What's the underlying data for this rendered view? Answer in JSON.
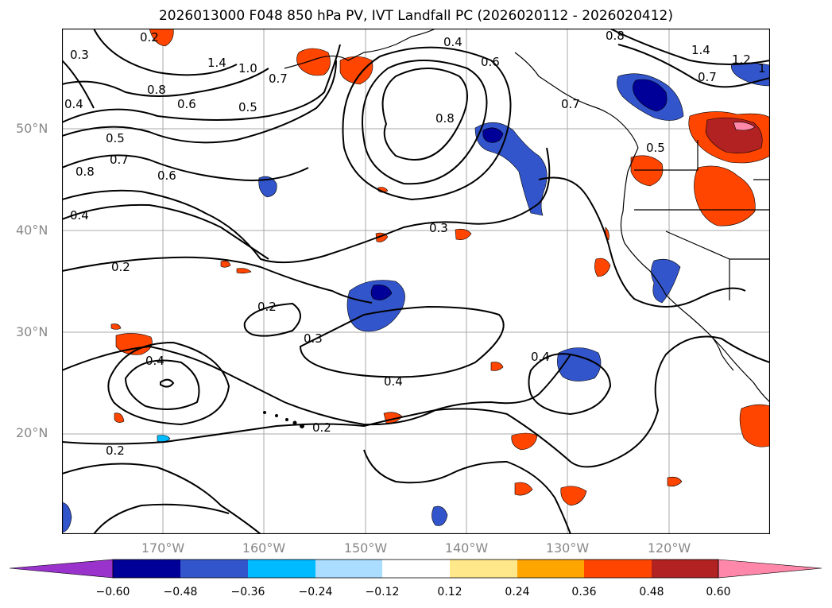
{
  "title": "2026013000 F048 850 hPa PV, IVT Landfall PC (2026020112 - 2026020412)",
  "map": {
    "lat_labels": [
      "50°N",
      "40°N",
      "30°N",
      "20°N"
    ],
    "lon_labels": [
      "170°W",
      "160°W",
      "150°W",
      "140°W",
      "130°W",
      "120°W"
    ]
  },
  "contour_labels": [
    {
      "id": "c1",
      "text": "1.4"
    },
    {
      "id": "c2",
      "text": "1.0"
    },
    {
      "id": "c3",
      "text": "0.7"
    },
    {
      "id": "c4",
      "text": "0.8"
    },
    {
      "id": "c5",
      "text": "0.6"
    },
    {
      "id": "c6",
      "text": "0.5"
    },
    {
      "id": "c7",
      "text": "0.4"
    },
    {
      "id": "c8",
      "text": "0.6"
    },
    {
      "id": "c9",
      "text": "0.8"
    },
    {
      "id": "c10",
      "text": "0.7"
    },
    {
      "id": "c11",
      "text": "0.5"
    },
    {
      "id": "c12",
      "text": "0.5"
    },
    {
      "id": "c13",
      "text": "0.7"
    },
    {
      "id": "c14",
      "text": "0.8"
    },
    {
      "id": "c15",
      "text": "0.6"
    },
    {
      "id": "c16",
      "text": "0.4"
    },
    {
      "id": "c17",
      "text": "0.2"
    },
    {
      "id": "c18",
      "text": "0.3"
    },
    {
      "id": "c19",
      "text": "0.2"
    },
    {
      "id": "c20",
      "text": "0.3"
    },
    {
      "id": "c21",
      "text": "0.4"
    },
    {
      "id": "c22",
      "text": "0.4"
    },
    {
      "id": "c23",
      "text": "0.4"
    },
    {
      "id": "c24",
      "text": "0.2"
    },
    {
      "id": "c25",
      "text": "0.2"
    },
    {
      "id": "c26",
      "text": "1.4"
    },
    {
      "id": "c27",
      "text": "1.2"
    },
    {
      "id": "c28",
      "text": "0.7"
    },
    {
      "id": "c29",
      "text": "0.8"
    },
    {
      "id": "c30",
      "text": "0.4"
    },
    {
      "id": "c31",
      "text": "0.2"
    },
    {
      "id": "c32",
      "text": "0.3"
    },
    {
      "id": "c33",
      "text": "1"
    }
  ],
  "colorbar": {
    "colors": [
      "#9933cc",
      "#000099",
      "#3355cc",
      "#00bbff",
      "#aaddff",
      "#ffffff",
      "#ffe88a",
      "#ffa500",
      "#ff4500",
      "#b22222",
      "#ff88aa"
    ],
    "ticks": [
      "−0.60",
      "−0.48",
      "−0.36",
      "−0.24",
      "−0.12",
      "0.12",
      "0.24",
      "0.36",
      "0.48",
      "0.60"
    ]
  }
}
